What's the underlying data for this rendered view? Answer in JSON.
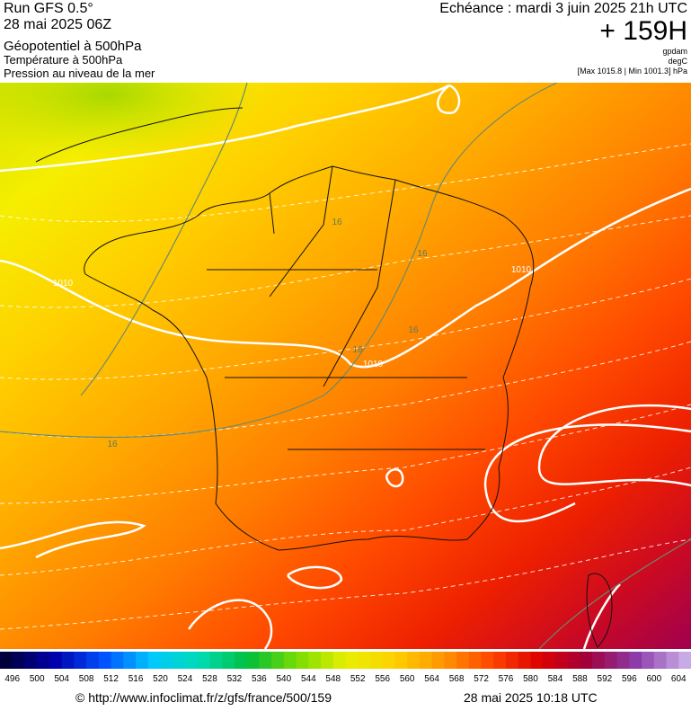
{
  "header": {
    "run": "Run GFS 0.5°",
    "run_date": "28 mai 2025 06Z",
    "title": "Géopotentiel à 500hPa",
    "subtitle_1": "Température à 500hPa",
    "subtitle_2": "Pression au niveau de la mer",
    "valid_time": "Echéance : mardi 3 juin 2025 21h UTC",
    "lead": "+ 159H",
    "unit_1": "gpdam",
    "unit_2": "degC",
    "range": "[Max 1015.8 | Min 1001.3] hPa"
  },
  "map": {
    "contour_labels": [
      "1010",
      "1010",
      "1010",
      "16",
      "16",
      "16",
      "16",
      "16"
    ]
  },
  "colorbar": {
    "labels": [
      496,
      500,
      504,
      508,
      512,
      516,
      520,
      524,
      528,
      532,
      536,
      540,
      544,
      548,
      552,
      556,
      560,
      564,
      568,
      572,
      576,
      580,
      584,
      588,
      592,
      596,
      600,
      604
    ]
  },
  "footer": {
    "url": "© http://www.infoclimat.fr/z/gfs/france/500/159",
    "timestamp": "28 mai 2025 10:18 UTC"
  }
}
